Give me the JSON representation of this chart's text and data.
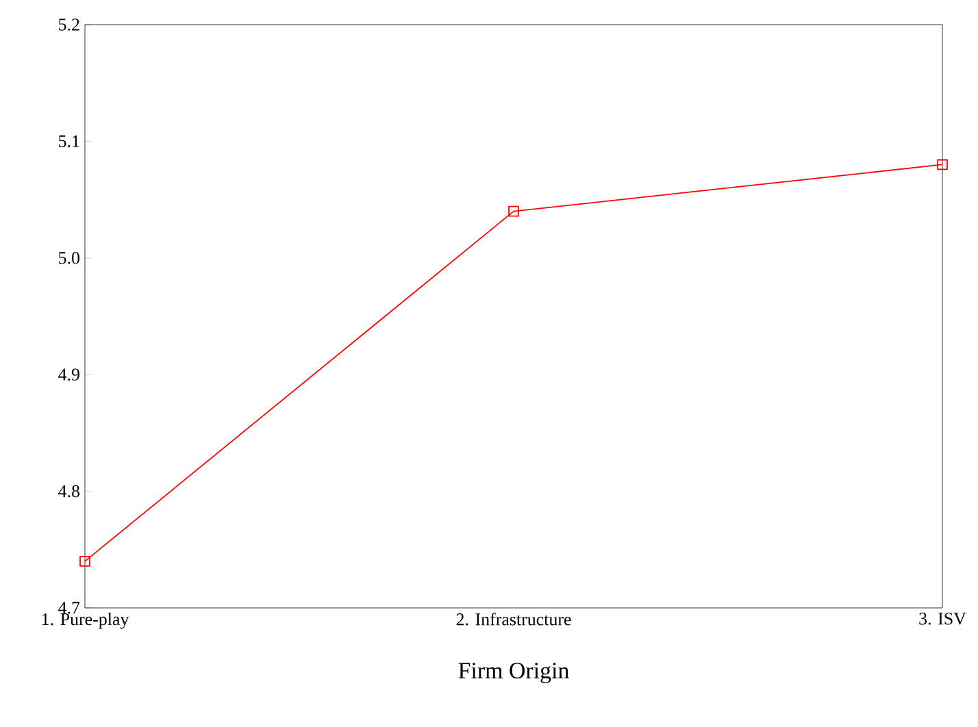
{
  "chart_data": {
    "type": "line",
    "xlabel": "Firm Origin",
    "categories": [
      "1. Pure-play",
      "2. Infrastructure",
      "3. ISV"
    ],
    "series": [
      {
        "color": "#ff0000",
        "values": [
          4.74,
          5.04,
          5.08
        ]
      }
    ],
    "ylim": [
      4.7,
      5.2
    ],
    "yticks": [
      4.7,
      4.8,
      4.9,
      {
        "value": 5.0,
        "label": "5.0"
      },
      5.1,
      5.2
    ],
    "marker": "square",
    "line_style": "solid",
    "grid": false
  }
}
